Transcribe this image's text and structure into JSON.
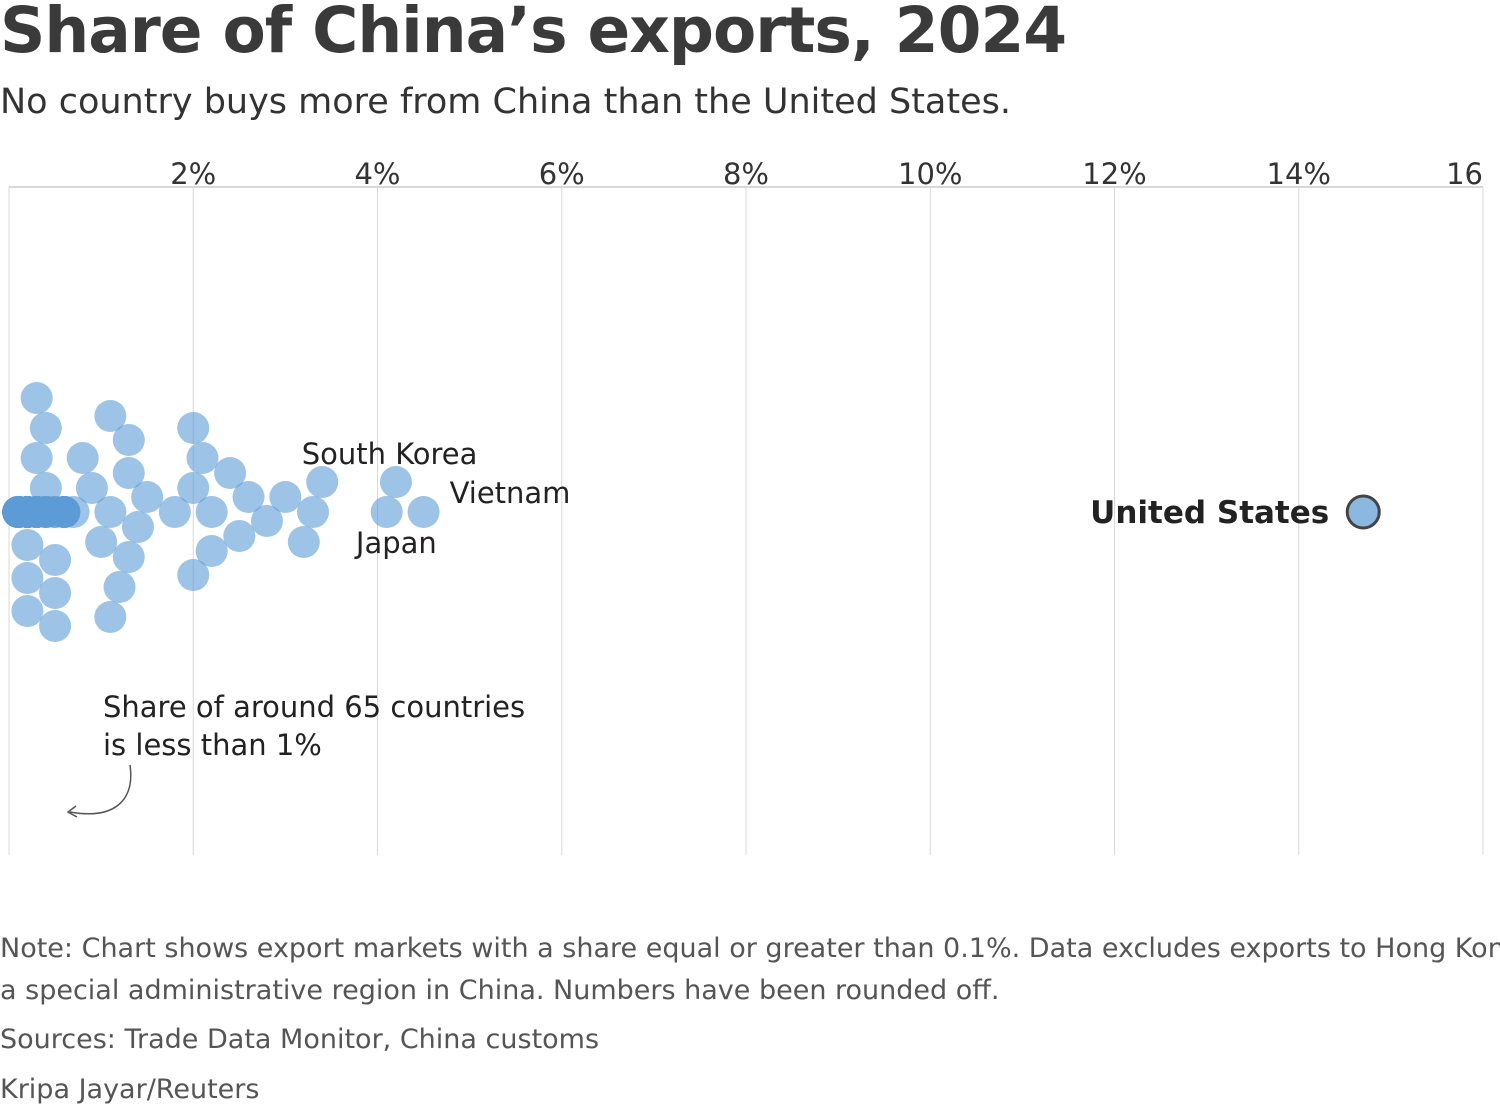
{
  "header": {
    "title": "Share of China’s exports, 2024",
    "subtitle": "No country buys more from China than the United States."
  },
  "chart_data": {
    "type": "scatter",
    "title": "Share of China’s exports, 2024",
    "subtitle": "No country buys more from China than the United States.",
    "xlim": [
      0,
      16
    ],
    "x_ticks": [
      2,
      4,
      6,
      8,
      10,
      12,
      14,
      16
    ],
    "x_tick_labels": [
      "2%",
      "4%",
      "6%",
      "8%",
      "10%",
      "12%",
      "14%",
      "16"
    ],
    "grid": true,
    "highlighted": {
      "name": "United States",
      "value": 14.7
    },
    "labeled": [
      {
        "name": "South Korea",
        "value": 4.1
      },
      {
        "name": "Vietnam",
        "value": 4.5
      },
      {
        "name": "Japan",
        "value": 4.2
      }
    ],
    "values": [
      4.1,
      4.5,
      4.2,
      3.3,
      3.4,
      3.2,
      3.0,
      2.8,
      2.6,
      2.5,
      2.4,
      2.2,
      2.2,
      2.1,
      2.0,
      2.0,
      2.0,
      1.8,
      1.5,
      1.4,
      1.3,
      1.3,
      1.3,
      1.2,
      1.1,
      1.1,
      1.1,
      1.0,
      0.9,
      0.8,
      0.7,
      0.2,
      0.4,
      0.2,
      0.3,
      0.2,
      0.4,
      0.2,
      0.3,
      0.2,
      0.4,
      0.1,
      0.2,
      0.5,
      0.1,
      0.5,
      0.1,
      0.3,
      0.5,
      0.1,
      0.2,
      0.3,
      0.5,
      0.1,
      0.2,
      0.5,
      0.2,
      0.3,
      0.1,
      0.4,
      0.6,
      0.1,
      0.4,
      0.1,
      0.3,
      0.6,
      0.1,
      0.4,
      0.1,
      0.2,
      0.6,
      0.1,
      0.3,
      0.2,
      0.6,
      0.2,
      0.3,
      0.6,
      0.1,
      0.3,
      0.3,
      0.6,
      0.2,
      0.1,
      0.3,
      0.2,
      0.2,
      0.1
    ],
    "annotation": [
      "Share of around 65 countries",
      "is less than 1%"
    ],
    "colors": {
      "dot": "#5b9bd5",
      "highlight_fill": "#8bb8e0",
      "highlight_stroke": "#444444",
      "grid": "#d8d8d8"
    }
  },
  "footer": {
    "note_line1": "Note: Chart shows export markets with a share equal or greater than 0.1%. Data excludes exports to Hong Kong,",
    "note_line2": "a special administrative region in China. Numbers have been rounded off.",
    "sources": "Sources: Trade Data Monitor, China customs",
    "credit": "Kripa Jayar/Reuters"
  }
}
